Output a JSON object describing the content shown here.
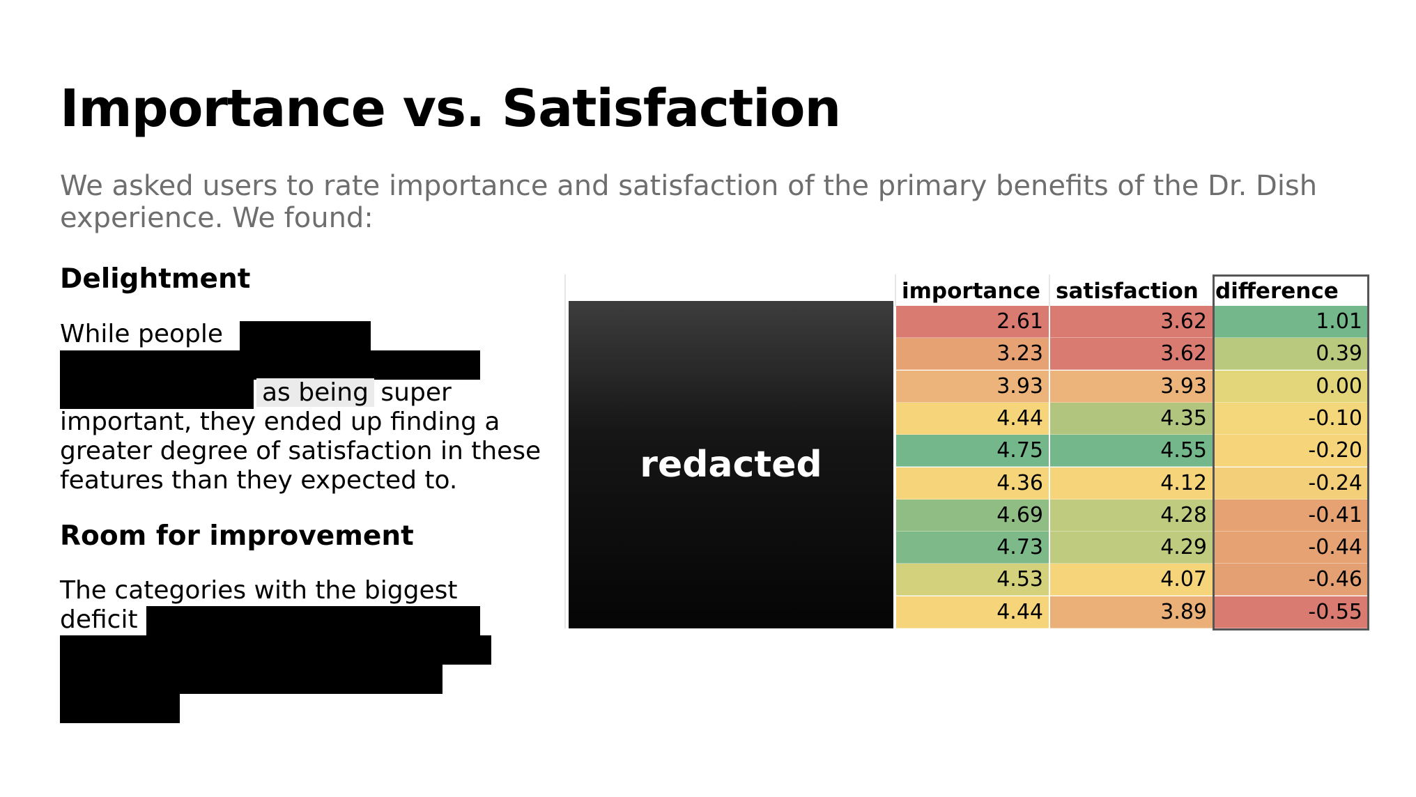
{
  "slide": {
    "title": "Importance vs. Satisfaction",
    "subtitle": "We asked users to rate importance and satisfaction of the primary benefits of the Dr. Dish experience. We found:"
  },
  "delightment": {
    "heading": "Delightment",
    "text_start": "While people",
    "text_highlight": "as being",
    "text_end": "super important, they ended up finding a greater degree of satisfaction in these features than they expected to."
  },
  "improvement": {
    "heading": "Room for improvement",
    "text_start": "The categories with the biggest deficit"
  },
  "table": {
    "redacted_label": "redacted",
    "headers": {
      "importance": "importance",
      "satisfaction": "satisfaction",
      "difference": "difference"
    },
    "colors": {
      "red": "#da7b72",
      "orange": "#e6a272",
      "lightorange": "#ecb47a",
      "yellow": "#f6d47a",
      "lightgreen": "#b1c57e",
      "green": "#74b78a",
      "midgreen": "#90bd84",
      "olive": "#bfcb7e",
      "khaki": "#d3d17c"
    },
    "rows": [
      {
        "importance": "2.61",
        "imp_color": "#da7b72",
        "satisfaction": "3.62",
        "sat_color": "#da7b72",
        "difference": "1.01",
        "diff_color": "#74b78a"
      },
      {
        "importance": "3.23",
        "imp_color": "#e6a272",
        "satisfaction": "3.62",
        "sat_color": "#da7b72",
        "difference": "0.39",
        "diff_color": "#b9c97d"
      },
      {
        "importance": "3.93",
        "imp_color": "#ecb47a",
        "satisfaction": "3.93",
        "sat_color": "#ecb47a",
        "difference": "0.00",
        "diff_color": "#e2d57a"
      },
      {
        "importance": "4.44",
        "imp_color": "#f6d47a",
        "satisfaction": "4.35",
        "sat_color": "#b1c57e",
        "difference": "-0.10",
        "diff_color": "#f3d77a"
      },
      {
        "importance": "4.75",
        "imp_color": "#74b78a",
        "satisfaction": "4.55",
        "sat_color": "#74b78a",
        "difference": "-0.20",
        "diff_color": "#f6d47a"
      },
      {
        "importance": "4.36",
        "imp_color": "#f6d47a",
        "satisfaction": "4.12",
        "sat_color": "#f6d47a",
        "difference": "-0.24",
        "diff_color": "#f4cf79"
      },
      {
        "importance": "4.69",
        "imp_color": "#90bd84",
        "satisfaction": "4.28",
        "sat_color": "#bfcb7e",
        "difference": "-0.41",
        "diff_color": "#e6a272"
      },
      {
        "importance": "4.73",
        "imp_color": "#7db989",
        "satisfaction": "4.29",
        "sat_color": "#bfcb7e",
        "difference": "-0.44",
        "diff_color": "#e6a272"
      },
      {
        "importance": "4.53",
        "imp_color": "#d3d17c",
        "satisfaction": "4.07",
        "sat_color": "#f6d47a",
        "difference": "-0.46",
        "diff_color": "#e4a072"
      },
      {
        "importance": "4.44",
        "imp_color": "#f6d47a",
        "satisfaction": "3.89",
        "sat_color": "#ebb078",
        "difference": "-0.55",
        "diff_color": "#da7b72"
      }
    ]
  }
}
